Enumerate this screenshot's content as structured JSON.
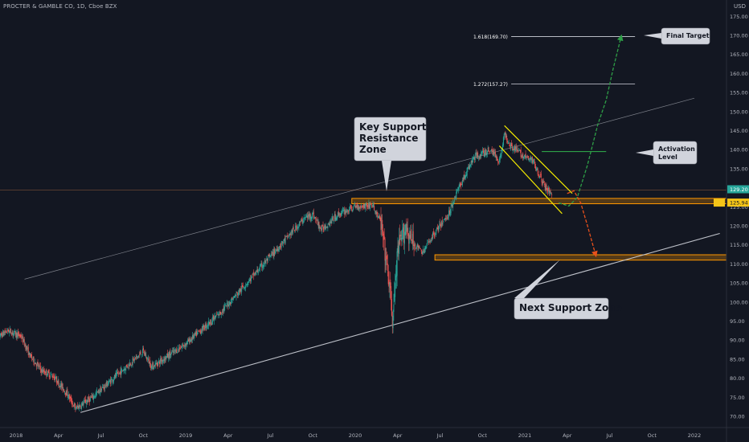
{
  "header": {
    "symbol": "PROCTER & GAMBLE CO, 1D, Cboe BZX",
    "currency": "USD"
  },
  "chart_data": {
    "type": "candlestick",
    "title": "PROCTER & GAMBLE CO, 1D, Cboe BZX",
    "y_axis": {
      "unit": "USD",
      "range": [
        68,
        175
      ],
      "ticks": [
        70,
        75,
        80,
        85,
        90,
        95,
        100,
        105,
        110,
        115,
        120,
        125,
        130,
        135,
        140,
        145,
        150,
        155,
        160,
        165,
        170,
        175
      ],
      "tick_labels": [
        "70.00",
        "75.00",
        "80.00",
        "85.00",
        "90.00",
        "95.00",
        "100.00",
        "105.00",
        "110.00",
        "115.00",
        "120.00",
        "125.00",
        "130.00",
        "135.00",
        "140.00",
        "145.00",
        "150.00",
        "155.00",
        "160.00",
        "165.00",
        "170.00",
        "175.00"
      ],
      "current_price_labels": [
        "129.20",
        "125.94"
      ]
    },
    "x_axis": {
      "ticks": [
        {
          "t": 2018.0,
          "label": "2018"
        },
        {
          "t": 2018.25,
          "label": "Apr"
        },
        {
          "t": 2018.5,
          "label": "Jul"
        },
        {
          "t": 2018.75,
          "label": "Oct"
        },
        {
          "t": 2019.0,
          "label": "2019"
        },
        {
          "t": 2019.25,
          "label": "Apr"
        },
        {
          "t": 2019.5,
          "label": "Jul"
        },
        {
          "t": 2019.75,
          "label": "Oct"
        },
        {
          "t": 2020.0,
          "label": "2020"
        },
        {
          "t": 2020.25,
          "label": "Apr"
        },
        {
          "t": 2020.5,
          "label": "Jul"
        },
        {
          "t": 2020.75,
          "label": "Oct"
        },
        {
          "t": 2021.0,
          "label": "2021"
        },
        {
          "t": 2021.25,
          "label": "Apr"
        },
        {
          "t": 2021.5,
          "label": "Jul"
        },
        {
          "t": 2021.75,
          "label": "Oct"
        },
        {
          "t": 2022.0,
          "label": "2022"
        }
      ]
    },
    "price_path": [
      [
        2017.87,
        90.0
      ],
      [
        2017.95,
        92.5
      ],
      [
        2018.03,
        91.0
      ],
      [
        2018.08,
        86.0
      ],
      [
        2018.15,
        82.0
      ],
      [
        2018.22,
        80.5
      ],
      [
        2018.3,
        76.0
      ],
      [
        2018.35,
        72.0
      ],
      [
        2018.45,
        75.0
      ],
      [
        2018.55,
        79.0
      ],
      [
        2018.65,
        83.0
      ],
      [
        2018.75,
        87.0
      ],
      [
        2018.8,
        83.0
      ],
      [
        2018.9,
        86.0
      ],
      [
        2019.0,
        89.0
      ],
      [
        2019.1,
        93.0
      ],
      [
        2019.2,
        97.0
      ],
      [
        2019.3,
        102.0
      ],
      [
        2019.4,
        107.0
      ],
      [
        2019.5,
        112.0
      ],
      [
        2019.6,
        117.0
      ],
      [
        2019.7,
        122.0
      ],
      [
        2019.75,
        123.0
      ],
      [
        2019.8,
        119.0
      ],
      [
        2019.9,
        123.0
      ],
      [
        2020.0,
        125.0
      ],
      [
        2020.1,
        125.5
      ],
      [
        2020.15,
        121.0
      ],
      [
        2020.2,
        105.0
      ],
      [
        2020.22,
        95.0
      ],
      [
        2020.25,
        113.0
      ],
      [
        2020.3,
        120.0
      ],
      [
        2020.33,
        116.0
      ],
      [
        2020.4,
        113.0
      ],
      [
        2020.45,
        117.0
      ],
      [
        2020.55,
        123.0
      ],
      [
        2020.6,
        129.0
      ],
      [
        2020.7,
        138.0
      ],
      [
        2020.8,
        140.0
      ],
      [
        2020.85,
        137.0
      ],
      [
        2020.88,
        144.0
      ],
      [
        2020.92,
        141.0
      ],
      [
        2021.0,
        138.0
      ],
      [
        2021.05,
        137.0
      ],
      [
        2021.12,
        130.0
      ],
      [
        2021.16,
        128.5
      ]
    ],
    "annotations": [
      {
        "text": "Key Support Resistance Zone",
        "type": "callout"
      },
      {
        "text": "Activation Level",
        "type": "callout"
      },
      {
        "text": "Final Target",
        "type": "callout"
      },
      {
        "text": "Next Support Zone",
        "type": "callout"
      },
      {
        "text": "1.618(169.70)",
        "type": "fib_level",
        "value": 169.7
      },
      {
        "text": "1.272(157.27)",
        "type": "fib_level",
        "value": 157.27
      }
    ],
    "levels": {
      "key_zone": [
        125.8,
        127.2
      ],
      "next_support_zone": [
        111.0,
        112.4
      ],
      "activation_level": 139.5
    },
    "trendlines": [
      {
        "name": "upper_channel",
        "from": [
          2018.05,
          106.0
        ],
        "to": [
          2022.0,
          153.5
        ]
      },
      {
        "name": "lower_channel",
        "from": [
          2018.38,
          71.0
        ],
        "to": [
          2022.15,
          118.0
        ]
      }
    ],
    "grid": false,
    "legend": "none"
  },
  "colors": {
    "background": "#131722",
    "up": "#26a69a",
    "down": "#ef5350",
    "zone": "#ff9800",
    "channel": "#f2e900",
    "projection_green": "#2e9f47",
    "projection_red": "#e8501b",
    "trendline": "#d1d4dc",
    "axis_text": "#b2b5be",
    "label_box": "#d1d4dc",
    "current_price_bg": "#26a69a",
    "alt_price_bg": "#f5c518"
  }
}
